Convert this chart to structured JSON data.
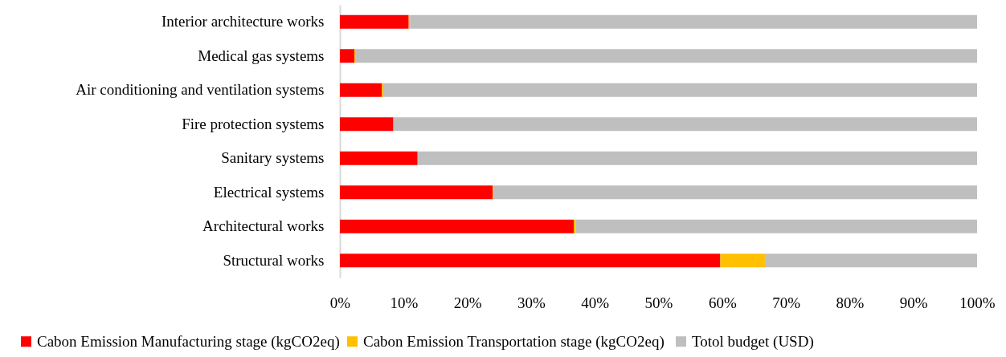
{
  "chart_data": {
    "type": "bar",
    "orientation": "horizontal",
    "stacked": true,
    "categories": [
      "Interior architecture works",
      "Medical gas systems",
      "Air conditioning and ventilation systems",
      "Fire protection systems",
      "Sanitary systems",
      "Electrical systems",
      "Architectural works",
      "Structural works"
    ],
    "series": [
      {
        "name": "Cabon Emission Manufacturing stage (kgCO2eq)",
        "color": "#ff0000",
        "values": [
          10.8,
          2.3,
          6.6,
          8.4,
          12.2,
          24.0,
          36.7,
          59.7
        ]
      },
      {
        "name": "Cabon Emission  Transportation stage (kgCO2eq)",
        "color": "#ffc000",
        "values": [
          0.2,
          0.1,
          0.2,
          0,
          0,
          0.2,
          0.3,
          7.0
        ]
      },
      {
        "name": "Totol budget (USD)",
        "color": "#bfbfbf",
        "values": [
          89.0,
          97.6,
          93.2,
          91.6,
          87.8,
          75.8,
          63.0,
          33.3
        ]
      }
    ],
    "xlim": [
      0,
      100
    ],
    "xticks": [
      {
        "value": 0,
        "label": "0%"
      },
      {
        "value": 10,
        "label": "10%"
      },
      {
        "value": 20,
        "label": "20%"
      },
      {
        "value": 30,
        "label": "30%"
      },
      {
        "value": 40,
        "label": "40%"
      },
      {
        "value": 50,
        "label": "50%"
      },
      {
        "value": 60,
        "label": "60%"
      },
      {
        "value": 70,
        "label": "70%"
      },
      {
        "value": 80,
        "label": "80%"
      },
      {
        "value": 90,
        "label": "90%"
      },
      {
        "value": 100,
        "label": "100%"
      }
    ],
    "grid": false,
    "legend": "bottom"
  }
}
